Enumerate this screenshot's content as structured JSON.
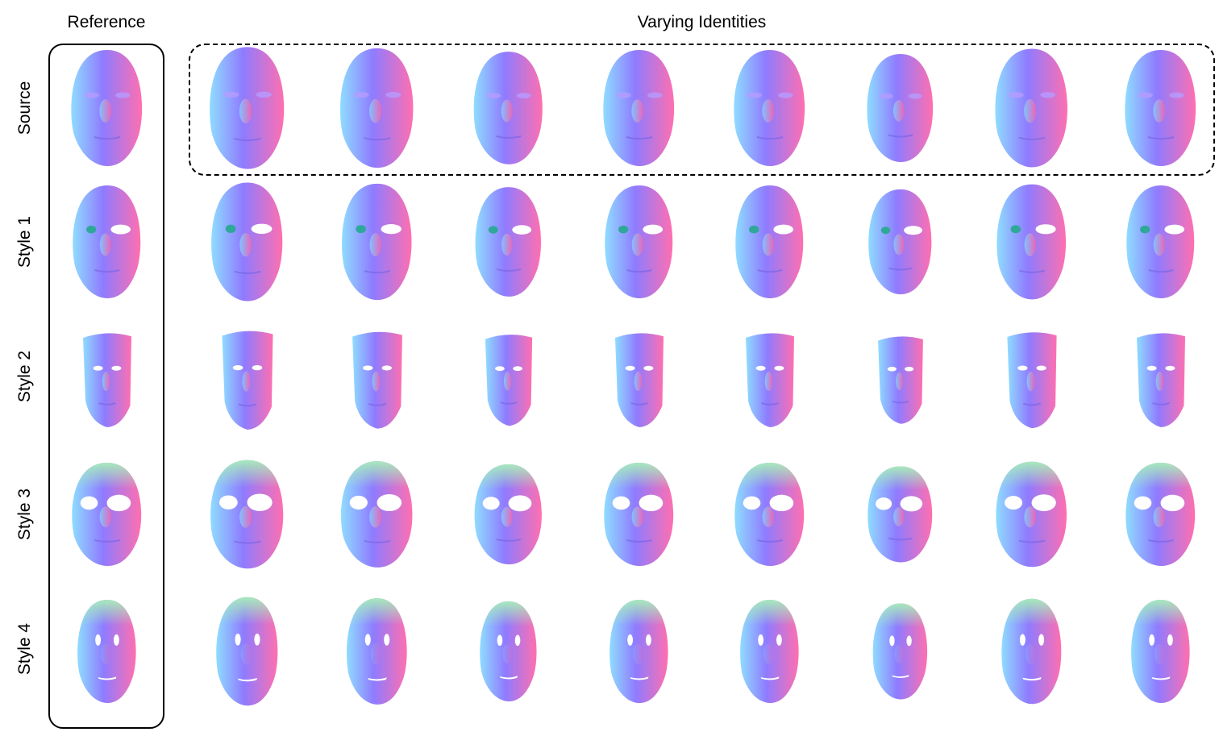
{
  "header": {
    "reference_title": "Reference",
    "varying_title": "Varying Identities"
  },
  "rows": [
    {
      "label": "Source",
      "style": "source"
    },
    {
      "label": "Style 1",
      "style": "style1"
    },
    {
      "label": "Style 2",
      "style": "style2"
    },
    {
      "label": "Style 3",
      "style": "style3"
    },
    {
      "label": "Style 4",
      "style": "style4"
    }
  ],
  "columns": [
    "reference",
    "identity-1",
    "identity-2",
    "identity-3",
    "identity-4",
    "identity-5",
    "identity-6",
    "identity-7",
    "identity-8"
  ],
  "colors": {
    "face_blue": "#8f7bff",
    "face_pink": "#ff6fb0",
    "face_cyan": "#8fdcff",
    "face_top_green": "#a8f0b8",
    "eye_hole": "#ffffff",
    "frame": "#000000"
  }
}
